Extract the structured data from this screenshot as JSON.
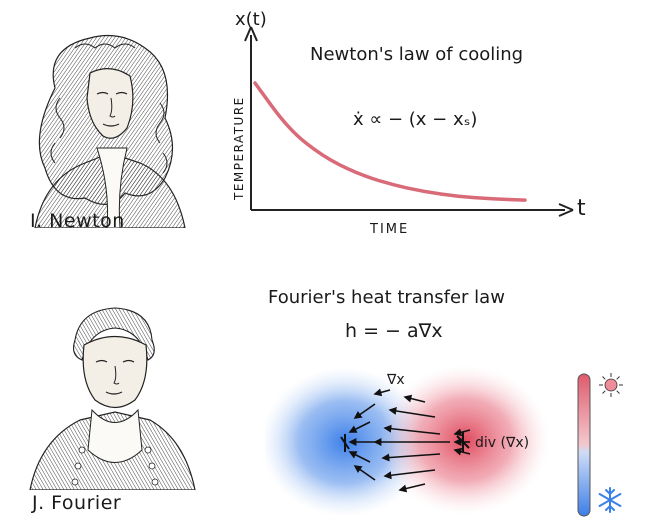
{
  "newton": {
    "caption": "I. Newton"
  },
  "fourier": {
    "caption": "J. Fourier"
  },
  "cooling": {
    "title": "Newton's law of cooling",
    "y_axis_symbol": "x(t)",
    "x_axis_symbol": "t",
    "y_label": "TEMPERATURE",
    "x_label": "TIME",
    "equation": "ẋ  ∝  − (x − xₛ)",
    "curve_color": "#d96a78",
    "curve_data": {
      "type": "line",
      "shape": "exponential-decay",
      "x": [
        0,
        1,
        2,
        3,
        4,
        5,
        6,
        7,
        8
      ],
      "y": [
        1.0,
        0.62,
        0.4,
        0.26,
        0.17,
        0.11,
        0.07,
        0.05,
        0.04
      ]
    }
  },
  "fourier_law": {
    "title": "Fourier's heat transfer law",
    "equation": "h = − a∇x",
    "gradient_label": "∇x",
    "divergence_label": "div (∇x)",
    "cold_color": "#4f8fe8",
    "hot_color": "#e0576a"
  },
  "icons": {
    "thermometer": "thermometer-icon",
    "sun": "sun-icon",
    "snowflake": "snowflake-icon"
  }
}
